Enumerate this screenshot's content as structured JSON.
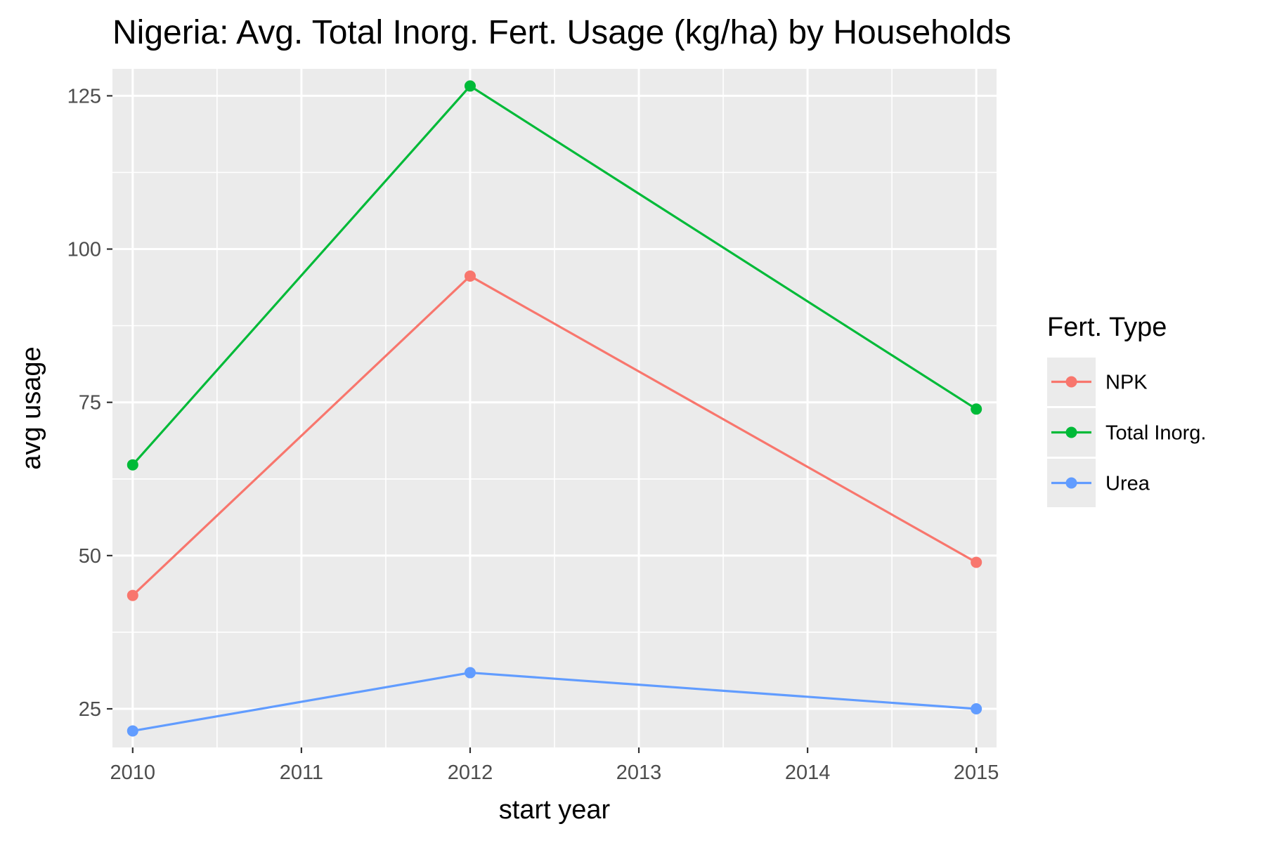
{
  "chart_data": {
    "type": "line",
    "title": "Nigeria: Avg. Total Inorg. Fert. Usage (kg/ha) by Households",
    "xlabel": "start year",
    "ylabel": "avg usage",
    "xlim": [
      2009.88,
      2015.12
    ],
    "ylim": [
      18.7,
      129.4
    ],
    "x_ticks": [
      2010,
      2011,
      2012,
      2013,
      2014,
      2015
    ],
    "y_ticks": [
      25,
      50,
      75,
      100,
      125
    ],
    "grid": true,
    "legend": {
      "title": "Fert. Type",
      "placement": "right"
    },
    "series": [
      {
        "name": "NPK",
        "color": "#F8766D",
        "x": [
          2010,
          2012,
          2015
        ],
        "y": [
          43.5,
          95.6,
          48.9
        ]
      },
      {
        "name": "Total Inorg.",
        "color": "#00BA38",
        "x": [
          2010,
          2012,
          2015
        ],
        "y": [
          64.8,
          126.6,
          73.9
        ]
      },
      {
        "name": "Urea",
        "color": "#619CFF",
        "x": [
          2010,
          2012,
          2015
        ],
        "y": [
          21.4,
          30.9,
          25.0
        ]
      }
    ]
  }
}
